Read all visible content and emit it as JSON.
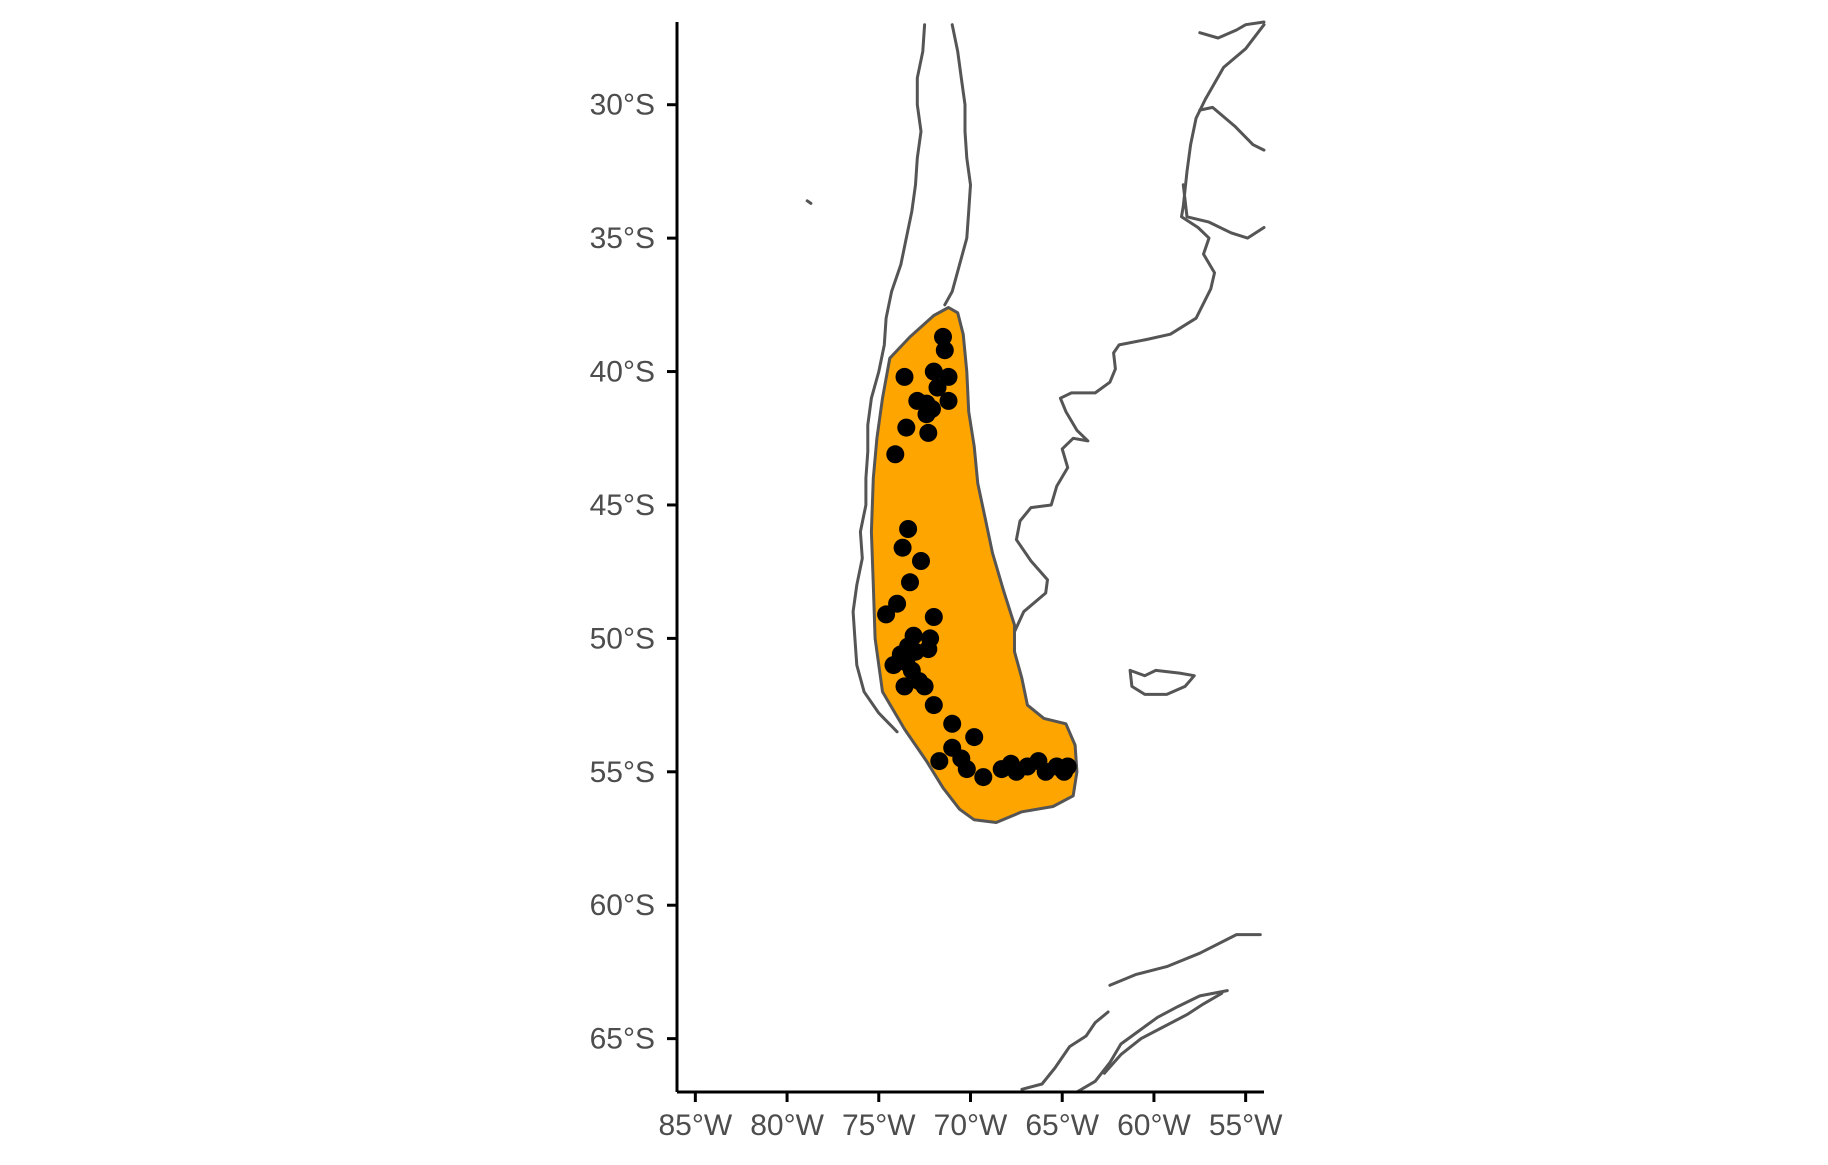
{
  "chart_data": {
    "type": "scatter",
    "title": "",
    "xlabel": "",
    "ylabel": "",
    "xlim": [
      -86,
      -54
    ],
    "ylim": [
      -67,
      -26.9
    ],
    "x_ticks": [
      {
        "value": -85,
        "label": "85°W"
      },
      {
        "value": -80,
        "label": "80°W"
      },
      {
        "value": -75,
        "label": "75°W"
      },
      {
        "value": -70,
        "label": "70°W"
      },
      {
        "value": -65,
        "label": "65°W"
      },
      {
        "value": -60,
        "label": "60°W"
      },
      {
        "value": -55,
        "label": "55°W"
      }
    ],
    "y_ticks": [
      {
        "value": -30,
        "label": "30°S"
      },
      {
        "value": -35,
        "label": "35°S"
      },
      {
        "value": -40,
        "label": "40°S"
      },
      {
        "value": -45,
        "label": "45°S"
      },
      {
        "value": -50,
        "label": "50°S"
      },
      {
        "value": -55,
        "label": "55°S"
      },
      {
        "value": -60,
        "label": "60°S"
      },
      {
        "value": -65,
        "label": "65°S"
      }
    ],
    "grid": false,
    "legend": "none",
    "colors": {
      "range_fill": "#FFA500",
      "range_stroke": "#555555",
      "coastline": "#555555",
      "points": "#000000",
      "axis": "#000000",
      "tick_label": "#4d4d4d"
    },
    "range_polygon": [
      [
        -71.2,
        -37.6
      ],
      [
        -70.7,
        -37.8
      ],
      [
        -70.4,
        -38.6
      ],
      [
        -70.2,
        -40.0
      ],
      [
        -70.1,
        -41.5
      ],
      [
        -69.8,
        -42.8
      ],
      [
        -69.6,
        -44.2
      ],
      [
        -69.2,
        -45.5
      ],
      [
        -68.8,
        -46.8
      ],
      [
        -68.2,
        -48.2
      ],
      [
        -67.6,
        -49.5
      ],
      [
        -67.6,
        -50.5
      ],
      [
        -67.2,
        -51.5
      ],
      [
        -66.9,
        -52.5
      ],
      [
        -66.0,
        -53.0
      ],
      [
        -64.8,
        -53.2
      ],
      [
        -64.3,
        -54.0
      ],
      [
        -64.2,
        -55.0
      ],
      [
        -64.4,
        -55.9
      ],
      [
        -65.5,
        -56.3
      ],
      [
        -67.2,
        -56.5
      ],
      [
        -68.6,
        -56.9
      ],
      [
        -69.8,
        -56.8
      ],
      [
        -70.6,
        -56.4
      ],
      [
        -71.5,
        -55.6
      ],
      [
        -72.4,
        -54.6
      ],
      [
        -73.6,
        -53.4
      ],
      [
        -74.8,
        -52.0
      ],
      [
        -75.2,
        -50.0
      ],
      [
        -75.3,
        -48.0
      ],
      [
        -75.4,
        -46.0
      ],
      [
        -75.3,
        -44.0
      ],
      [
        -75.1,
        -42.5
      ],
      [
        -74.8,
        -41.0
      ],
      [
        -74.4,
        -39.5
      ],
      [
        -73.3,
        -38.7
      ],
      [
        -72.0,
        -37.9
      ]
    ],
    "points": [
      [
        -71.5,
        -38.7
      ],
      [
        -71.4,
        -39.2
      ],
      [
        -71.2,
        -40.2
      ],
      [
        -72.0,
        -40.0
      ],
      [
        -73.6,
        -40.2
      ],
      [
        -71.8,
        -40.6
      ],
      [
        -71.2,
        -41.1
      ],
      [
        -72.9,
        -41.1
      ],
      [
        -72.4,
        -41.2
      ],
      [
        -72.1,
        -41.4
      ],
      [
        -72.4,
        -41.6
      ],
      [
        -73.5,
        -42.1
      ],
      [
        -72.3,
        -42.3
      ],
      [
        -74.1,
        -43.1
      ],
      [
        -73.4,
        -45.9
      ],
      [
        -73.7,
        -46.6
      ],
      [
        -72.7,
        -47.1
      ],
      [
        -73.3,
        -47.9
      ],
      [
        -74.0,
        -48.7
      ],
      [
        -74.6,
        -49.1
      ],
      [
        -72.0,
        -49.2
      ],
      [
        -72.2,
        -50.0
      ],
      [
        -73.1,
        -49.9
      ],
      [
        -73.4,
        -50.3
      ],
      [
        -73.8,
        -50.6
      ],
      [
        -73.0,
        -50.5
      ],
      [
        -72.3,
        -50.4
      ],
      [
        -73.5,
        -50.9
      ],
      [
        -74.2,
        -51.0
      ],
      [
        -73.2,
        -51.2
      ],
      [
        -72.8,
        -51.6
      ],
      [
        -72.5,
        -51.8
      ],
      [
        -73.6,
        -51.8
      ],
      [
        -72.0,
        -52.5
      ],
      [
        -71.0,
        -53.2
      ],
      [
        -69.8,
        -53.7
      ],
      [
        -71.0,
        -54.1
      ],
      [
        -70.5,
        -54.5
      ],
      [
        -71.7,
        -54.6
      ],
      [
        -70.2,
        -54.9
      ],
      [
        -69.3,
        -55.2
      ],
      [
        -68.3,
        -54.9
      ],
      [
        -67.8,
        -54.7
      ],
      [
        -67.5,
        -55.0
      ],
      [
        -66.9,
        -54.8
      ],
      [
        -66.3,
        -54.6
      ],
      [
        -65.9,
        -55.0
      ],
      [
        -65.3,
        -54.8
      ],
      [
        -64.9,
        -55.0
      ],
      [
        -64.7,
        -54.8
      ]
    ]
  }
}
